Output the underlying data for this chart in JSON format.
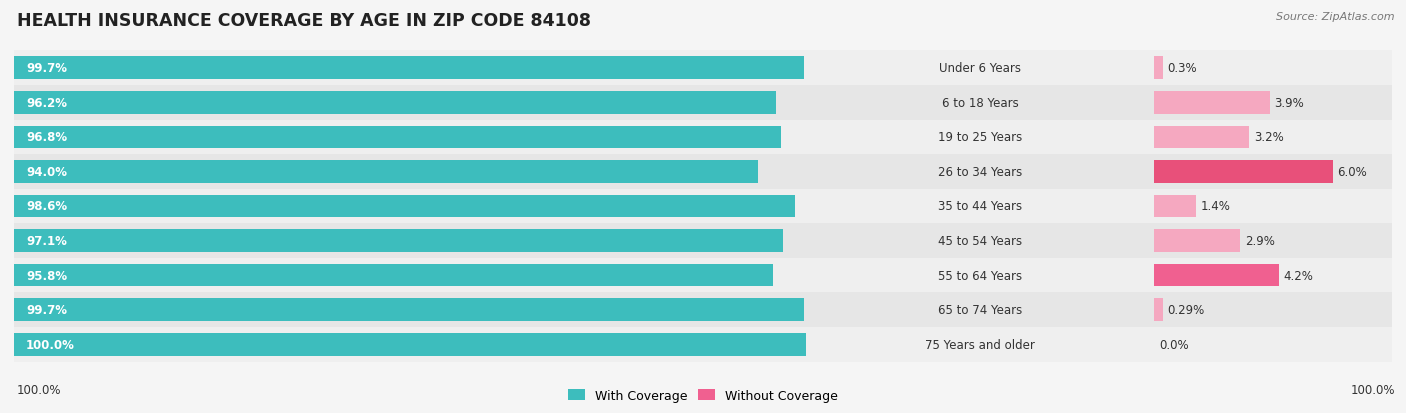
{
  "title": "HEALTH INSURANCE COVERAGE BY AGE IN ZIP CODE 84108",
  "source": "Source: ZipAtlas.com",
  "categories": [
    "Under 6 Years",
    "6 to 18 Years",
    "19 to 25 Years",
    "26 to 34 Years",
    "35 to 44 Years",
    "45 to 54 Years",
    "55 to 64 Years",
    "65 to 74 Years",
    "75 Years and older"
  ],
  "with_coverage": [
    99.7,
    96.2,
    96.8,
    94.0,
    98.6,
    97.1,
    95.8,
    99.7,
    100.0
  ],
  "without_coverage": [
    0.3,
    3.9,
    3.2,
    6.0,
    1.4,
    2.9,
    4.2,
    0.29,
    0.0
  ],
  "with_labels": [
    "99.7%",
    "96.2%",
    "96.8%",
    "94.0%",
    "98.6%",
    "97.1%",
    "95.8%",
    "99.7%",
    "100.0%"
  ],
  "without_labels": [
    "0.3%",
    "3.9%",
    "3.2%",
    "6.0%",
    "1.4%",
    "2.9%",
    "4.2%",
    "0.29%",
    "0.0%"
  ],
  "color_with": "#3dbdbd",
  "without_colors": [
    "#f5a8c0",
    "#f5a8c0",
    "#f5a8c0",
    "#e8507a",
    "#f5a8c0",
    "#f5a8c0",
    "#f06090",
    "#f5a8c0",
    "#f5a8c0"
  ],
  "legend_color_with": "#3dbdbd",
  "legend_color_without": "#f06090",
  "title_fontsize": 12.5,
  "bar_height": 0.65,
  "row_bg_even": "#efefef",
  "row_bg_odd": "#e6e6e6",
  "fg_color": "#333333",
  "bg_color": "#f5f5f5"
}
